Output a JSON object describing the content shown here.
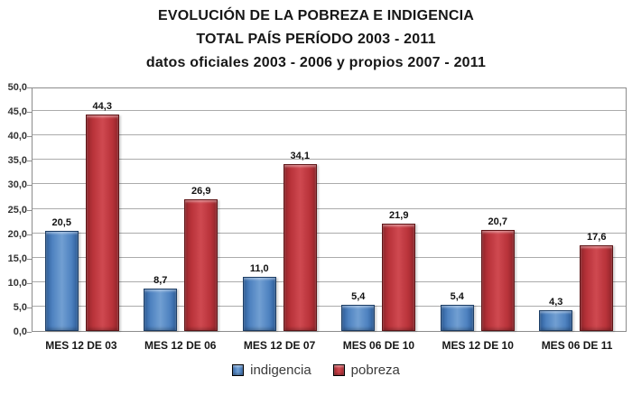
{
  "title": {
    "line1": "EVOLUCIÓN DE LA POBREZA E INDIGENCIA",
    "line2": "TOTAL PAÍS PERÍODO 2003 - 2011",
    "line3": "datos oficiales 2003 - 2006 y propios 2007 - 2011"
  },
  "chart_data": {
    "type": "bar",
    "categories": [
      "MES 12 DE 03",
      "MES 12 DE 06",
      "MES 12 DE 07",
      "MES 06 DE 10",
      "MES 12 DE 10",
      "MES 06 DE 11"
    ],
    "series": [
      {
        "name": "indigencia",
        "color": "#4f81bd",
        "values": [
          20.5,
          8.7,
          11.0,
          5.4,
          5.4,
          4.3
        ],
        "labels": [
          "20,5",
          "8,7",
          "11,0",
          "5,4",
          "5,4",
          "4,3"
        ]
      },
      {
        "name": "pobreza",
        "color": "#c0383e",
        "values": [
          44.3,
          26.9,
          34.1,
          21.9,
          20.7,
          17.6
        ],
        "labels": [
          "44,3",
          "26,9",
          "34,1",
          "21,9",
          "20,7",
          "17,6"
        ]
      }
    ],
    "ylim": [
      0,
      50
    ],
    "ytick_step": 5,
    "ytick_labels": [
      "0,0",
      "5,0",
      "10,0",
      "15,0",
      "20,0",
      "25,0",
      "30,0",
      "35,0",
      "40,0",
      "45,0",
      "50,0"
    ],
    "grid": true,
    "legend_position": "bottom",
    "grid_color": "#ababab",
    "axis_color": "#8c8c8c",
    "label_color": "#111111"
  }
}
